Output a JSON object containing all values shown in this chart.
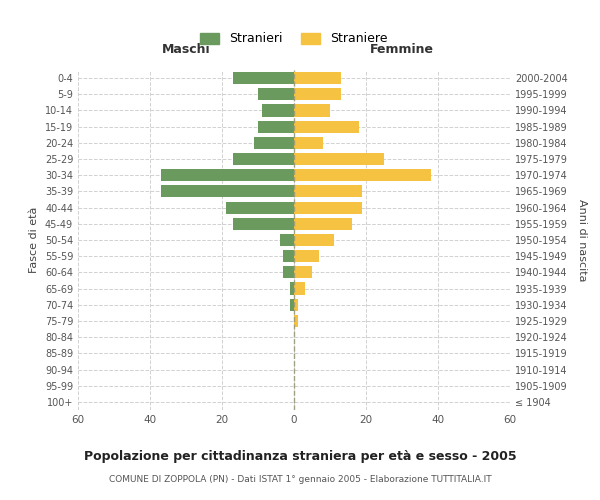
{
  "age_groups": [
    "100+",
    "95-99",
    "90-94",
    "85-89",
    "80-84",
    "75-79",
    "70-74",
    "65-69",
    "60-64",
    "55-59",
    "50-54",
    "45-49",
    "40-44",
    "35-39",
    "30-34",
    "25-29",
    "20-24",
    "15-19",
    "10-14",
    "5-9",
    "0-4"
  ],
  "birth_years": [
    "≤ 1904",
    "1905-1909",
    "1910-1914",
    "1915-1919",
    "1920-1924",
    "1925-1929",
    "1930-1934",
    "1935-1939",
    "1940-1944",
    "1945-1949",
    "1950-1954",
    "1955-1959",
    "1960-1964",
    "1965-1969",
    "1970-1974",
    "1975-1979",
    "1980-1984",
    "1985-1989",
    "1990-1994",
    "1995-1999",
    "2000-2004"
  ],
  "males": [
    0,
    0,
    0,
    0,
    0,
    0,
    1,
    1,
    3,
    3,
    4,
    17,
    19,
    37,
    37,
    17,
    11,
    10,
    9,
    10,
    17
  ],
  "females": [
    0,
    0,
    0,
    0,
    0,
    1,
    1,
    3,
    5,
    7,
    11,
    16,
    19,
    19,
    38,
    25,
    8,
    18,
    10,
    13,
    13
  ],
  "male_color": "#6b9a5e",
  "female_color": "#f5c242",
  "background_color": "#ffffff",
  "grid_color": "#cccccc",
  "title": "Popolazione per cittadinanza straniera per età e sesso - 2005",
  "subtitle": "COMUNE DI ZOPPOLA (PN) - Dati ISTAT 1° gennaio 2005 - Elaborazione TUTTITALIA.IT",
  "xlabel_left": "Maschi",
  "xlabel_right": "Femmine",
  "ylabel_left": "Fasce di età",
  "ylabel_right": "Anni di nascita",
  "legend_male": "Stranieri",
  "legend_female": "Straniere",
  "xlim": 60
}
